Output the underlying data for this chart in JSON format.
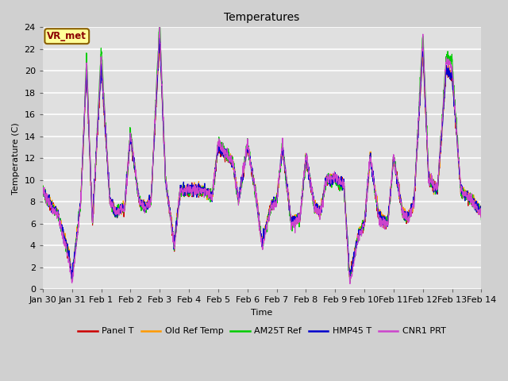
{
  "title": "Temperatures",
  "xlabel": "Time",
  "ylabel": "Temperature (C)",
  "ylim": [
    0,
    24
  ],
  "xlim_days": [
    0,
    15
  ],
  "fig_bg_color": "#d0d0d0",
  "plot_bg_color": "#e0e0e0",
  "grid_color": "white",
  "annotation_text": "VR_met",
  "annotation_color": "#8b0000",
  "annotation_bg": "#ffff99",
  "annotation_border": "#8b6000",
  "series": [
    {
      "label": "Panel T",
      "color": "#cc0000"
    },
    {
      "label": "Old Ref Temp",
      "color": "#ff9900"
    },
    {
      "label": "AM25T Ref",
      "color": "#00cc00"
    },
    {
      "label": "HMP45 T",
      "color": "#0000cc"
    },
    {
      "label": "CNR1 PRT",
      "color": "#cc44cc"
    }
  ],
  "xtick_labels": [
    "Jan 30",
    "Jan 31",
    "Feb 1",
    "Feb 2",
    "Feb 3",
    "Feb 4",
    "Feb 5",
    "Feb 6",
    "Feb 7",
    "Feb 8",
    "Feb 9",
    "Feb 10",
    "Feb 11",
    "Feb 12",
    "Feb 13",
    "Feb 14"
  ],
  "xtick_positions": [
    0,
    1,
    2,
    3,
    4,
    5,
    6,
    7,
    8,
    9,
    10,
    11,
    12,
    13,
    14,
    15
  ],
  "ytick_positions": [
    0,
    2,
    4,
    6,
    8,
    10,
    12,
    14,
    16,
    18,
    20,
    22,
    24
  ],
  "font_size": 8,
  "legend_fontsize": 8,
  "title_fontsize": 10,
  "linewidth": 0.8
}
